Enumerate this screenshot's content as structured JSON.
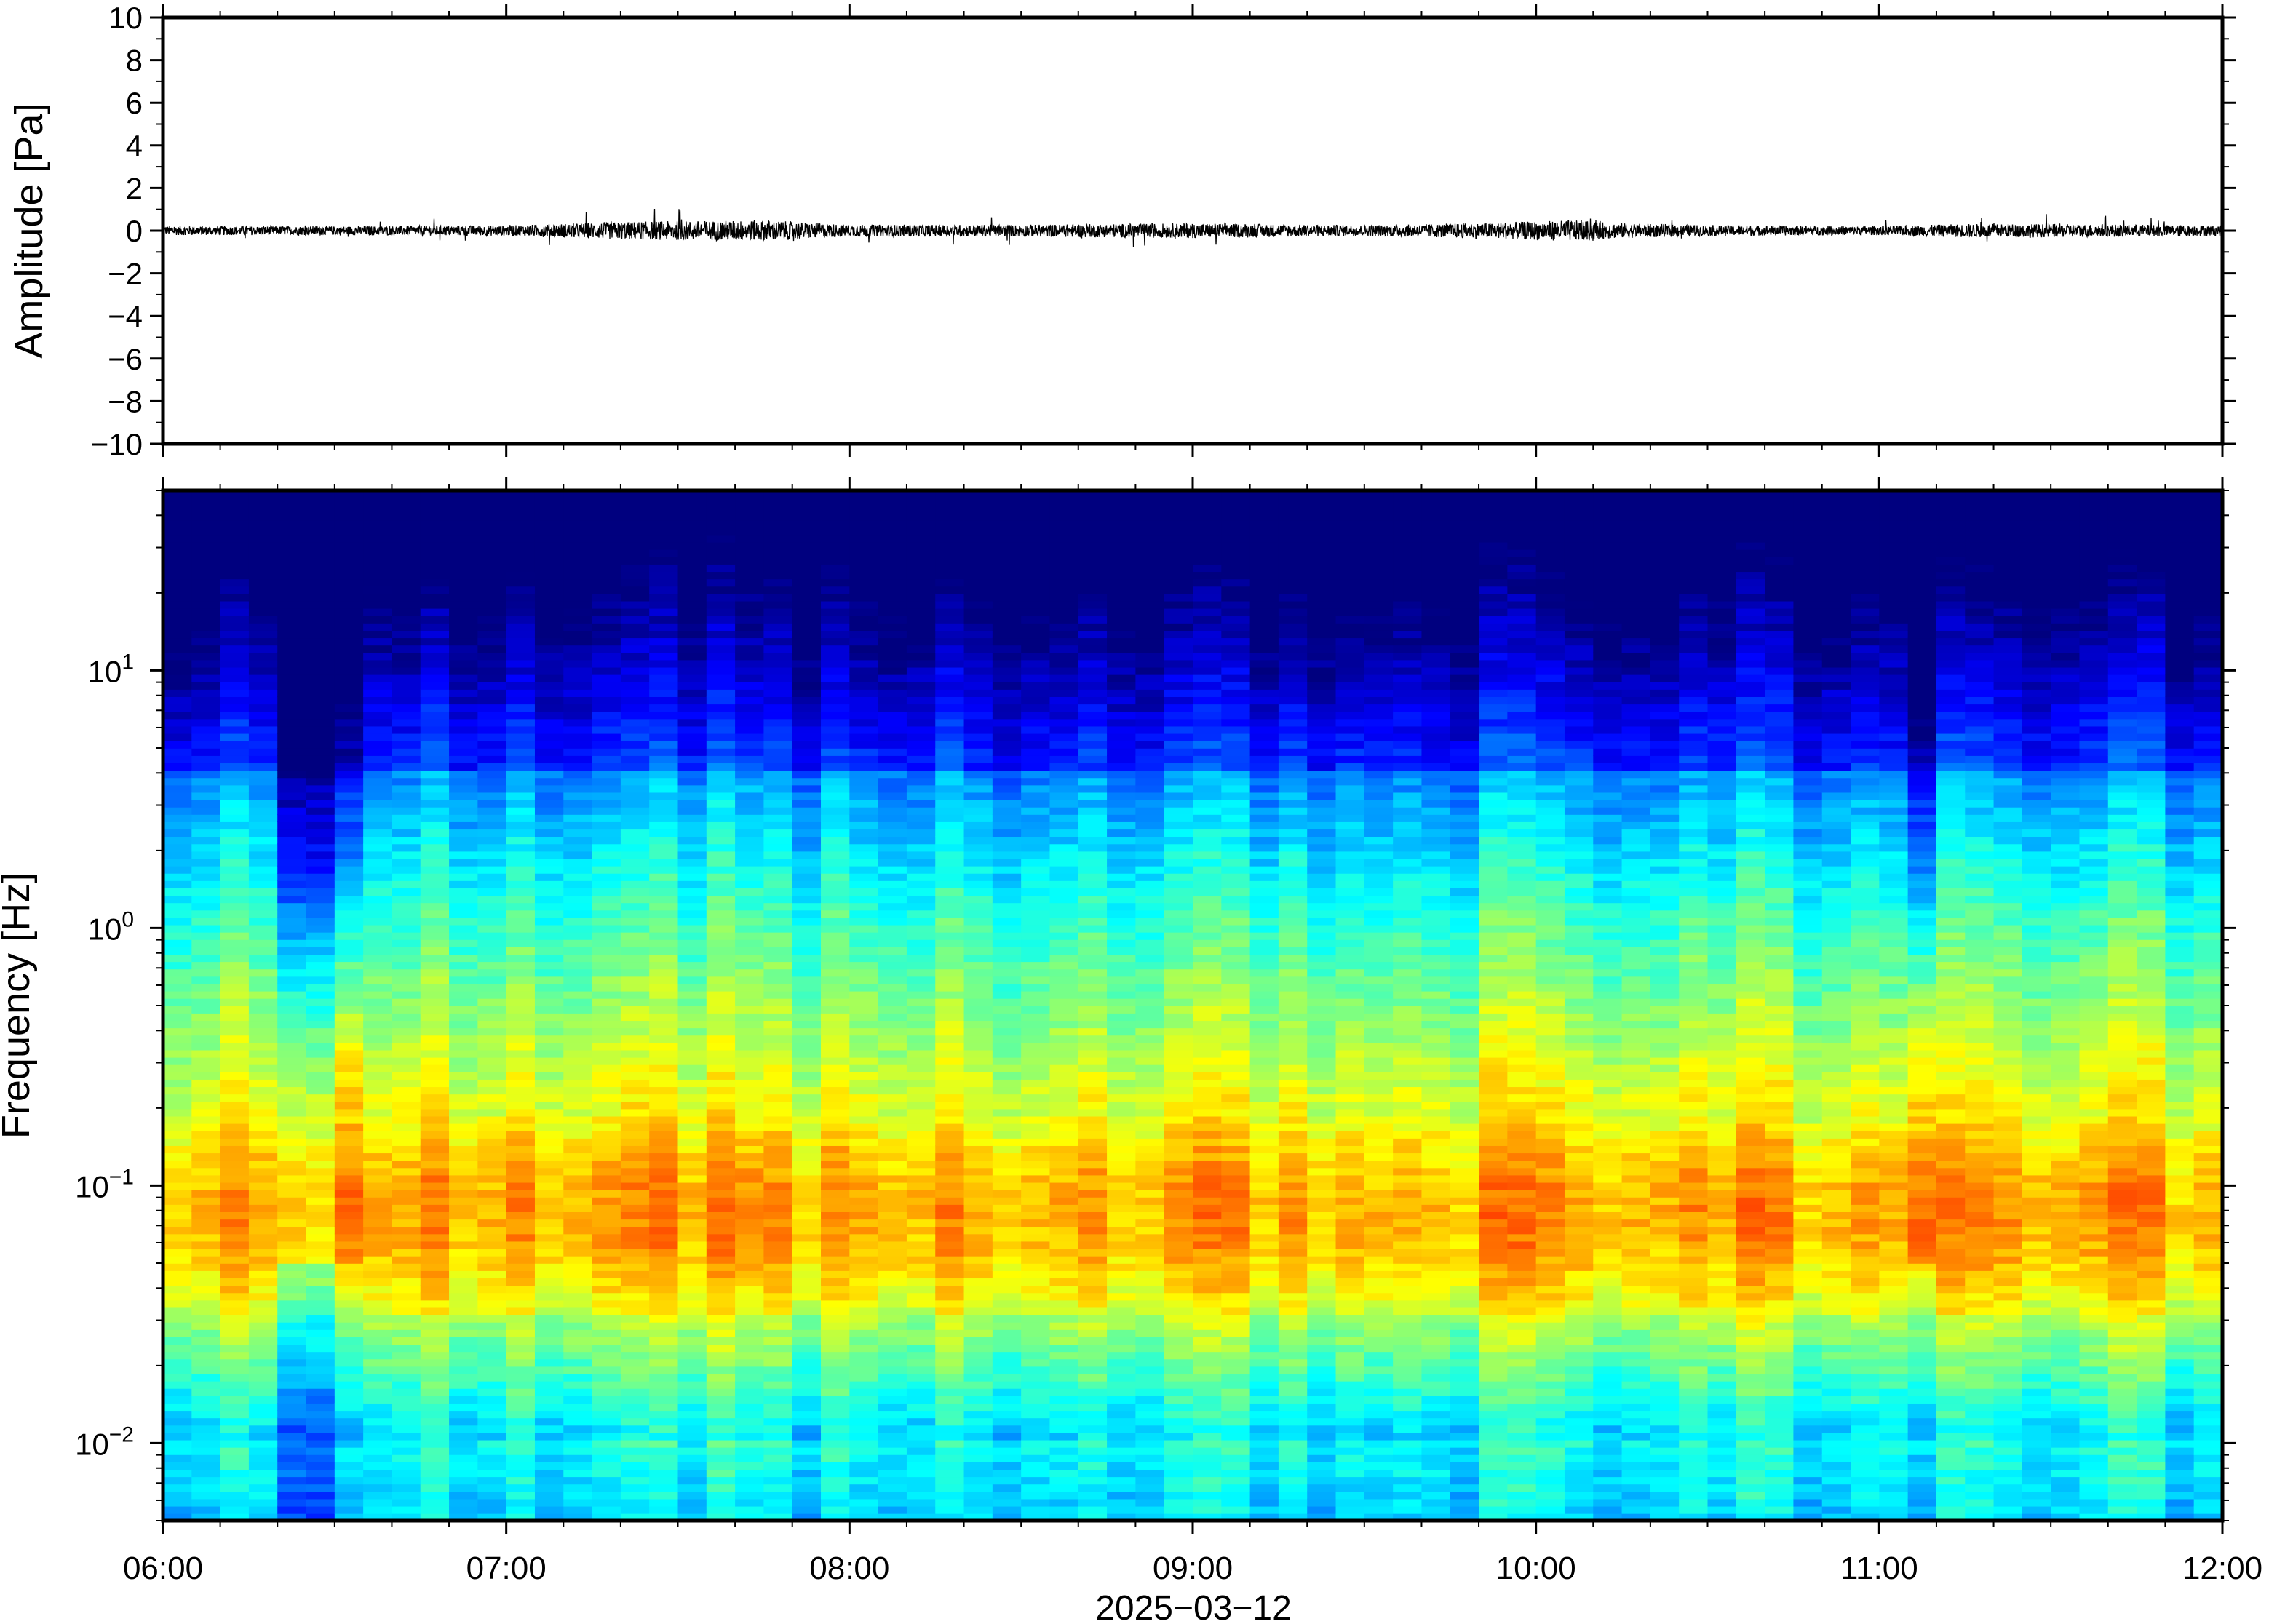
{
  "chart_data": [
    {
      "type": "line",
      "ylabel": "Amplitude [Pa]",
      "ylim": [
        -10,
        10
      ],
      "yticks": [
        "10",
        "8",
        "6",
        "4",
        "2",
        "0",
        "−2",
        "−4",
        "−6",
        "−8",
        "−10"
      ],
      "ytick_values": [
        10,
        8,
        6,
        4,
        2,
        0,
        -2,
        -4,
        -6,
        -8,
        -10
      ],
      "xlim": [
        "2025-03-12 06:00",
        "2025-03-12 12:00"
      ],
      "series": [
        {
          "values_description_hours": [
            6.0,
            6.5,
            7.0,
            7.35,
            7.75,
            8.0,
            8.5,
            9.0,
            9.5,
            9.9,
            10.1,
            10.25,
            10.5,
            11.0,
            11.25,
            11.5,
            12.0
          ],
          "envelope_pa": [
            0.3,
            0.3,
            0.35,
            0.6,
            0.7,
            0.4,
            0.4,
            0.5,
            0.35,
            0.55,
            0.7,
            0.5,
            0.35,
            0.3,
            0.45,
            0.45,
            0.35
          ]
        }
      ],
      "grid": false
    },
    {
      "type": "heatmap",
      "ylabel": "Frequency [Hz]",
      "yscale": "log",
      "ylim": [
        0.005,
        50
      ],
      "ytick_labels": [
        {
          "base": "10",
          "exp": "1",
          "value": 10
        },
        {
          "base": "10",
          "exp": "0",
          "value": 1
        },
        {
          "base": "10",
          "exp": "−1",
          "value": 0.1
        },
        {
          "base": "10",
          "exp": "−2",
          "value": 0.01
        }
      ],
      "xlim": [
        "2025-03-12 06:00",
        "2025-03-12 12:00"
      ],
      "xticks": [
        "06:00",
        "07:00",
        "08:00",
        "09:00",
        "10:00",
        "11:00",
        "12:00"
      ],
      "xlabel": "2025−03−12",
      "colormap": "jet",
      "colormap_stops": [
        "#00007f",
        "#0000ff",
        "#007fff",
        "#00ffff",
        "#7fff7f",
        "#ffff00",
        "#ff7f00",
        "#ff0000",
        "#7f0000"
      ],
      "quiet_low_column_hours": [
        [
          6.3,
          6.6
        ],
        [
          11.05,
          11.15
        ]
      ],
      "peak_band_hz": [
        0.05,
        0.2
      ],
      "grid": false
    }
  ]
}
